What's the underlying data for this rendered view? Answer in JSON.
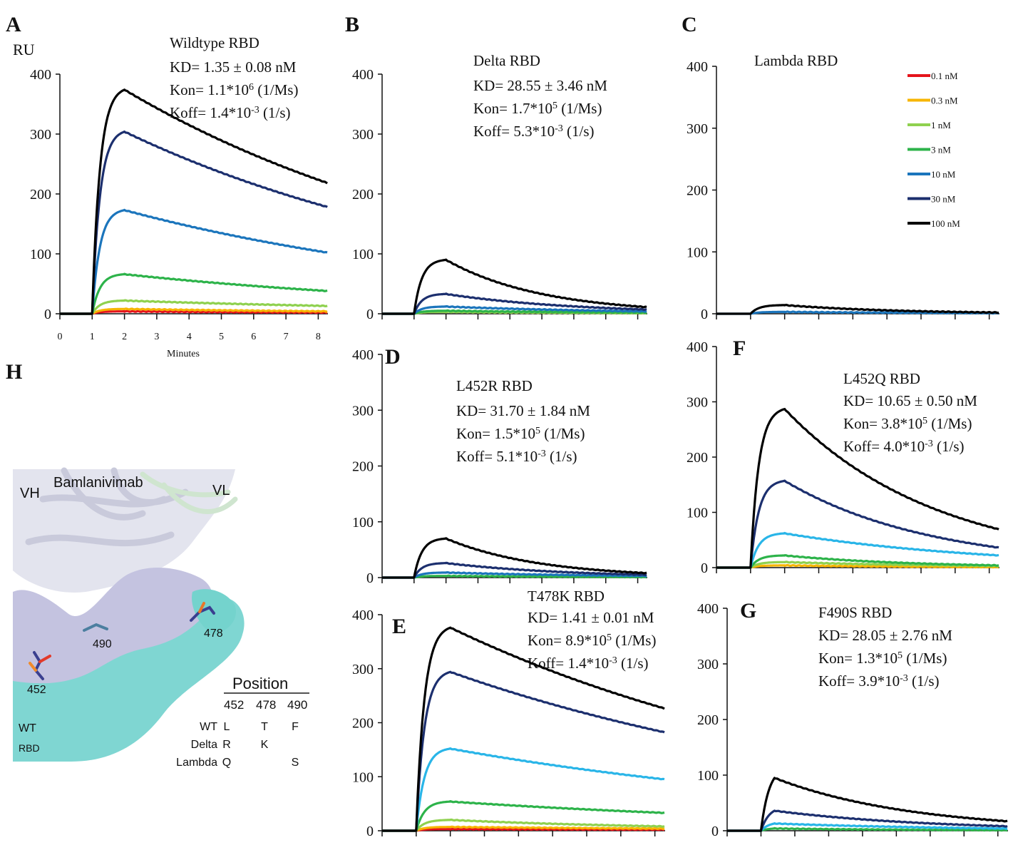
{
  "figure_meta": {
    "panel_H": {
      "letter": "H",
      "antibody_label": "Bamlanivimab",
      "chain_labels": [
        "VH",
        "VL"
      ],
      "residue_labels": [
        "490",
        "478",
        "452"
      ],
      "surface_label": [
        "WT",
        "RBD"
      ],
      "table": {
        "title": "Position",
        "positions": [
          "452",
          "478",
          "490"
        ],
        "rows": [
          {
            "variant": "WT",
            "color": "#33c4cc",
            "residues": [
              "L",
              "T",
              "F"
            ]
          },
          {
            "variant": "Delta",
            "color": "#f07a2a",
            "residues": [
              "R",
              "K",
              ""
            ]
          },
          {
            "variant": "Lambda",
            "color": "#1fbf3a",
            "residues": [
              "Q",
              "",
              "S"
            ]
          }
        ]
      }
    }
  },
  "chart_data": [
    {
      "panel": "A",
      "type": "line",
      "title": "Wildtype RBD",
      "annotation": [
        "KD= 1.35 ± 0.08 nM",
        "Kon= 1.1*10^6 (1/Ms)",
        "Koff= 1.4*10^-3 (1/s)"
      ],
      "ylabel": "RU",
      "xlabel": "Minutes",
      "xlim": [
        0,
        8.3
      ],
      "ylim": [
        0,
        400
      ],
      "yticks": [
        0,
        100,
        200,
        300,
        400
      ],
      "xticks": [
        0,
        1,
        2,
        3,
        4,
        5,
        6,
        7,
        8
      ],
      "show_xtick_labels": true,
      "association_start": 1.0,
      "dissociation_start": 2.0,
      "series": [
        {
          "name": "0.1 nM",
          "color": "#e5141b",
          "peak": 4,
          "end": 2
        },
        {
          "name": "0.3 nM",
          "color": "#f7b500",
          "peak": 8,
          "end": 4
        },
        {
          "name": "1 nM",
          "color": "#8fd14f",
          "peak": 22,
          "end": 13
        },
        {
          "name": "3 nM",
          "color": "#2db34a",
          "peak": 66,
          "end": 38
        },
        {
          "name": "10 nM",
          "color": "#1b75bc",
          "peak": 173,
          "end": 102
        },
        {
          "name": "30 nM",
          "color": "#1c2f6e",
          "peak": 304,
          "end": 178
        },
        {
          "name": "100 nM",
          "color": "#000000",
          "peak": 374,
          "end": 218
        }
      ]
    },
    {
      "panel": "B",
      "type": "line",
      "title": "Delta RBD",
      "annotation": [
        "KD= 28.55 ± 3.46 nM",
        "Kon= 1.7*10^5 (1/Ms)",
        "Koff= 5.3*10^-3 (1/s)"
      ],
      "xlim": [
        0,
        8.3
      ],
      "ylim": [
        0,
        400
      ],
      "yticks": [
        0,
        100,
        200,
        300,
        400
      ],
      "xticks": [
        0,
        1,
        2,
        3,
        4,
        5,
        6,
        7,
        8
      ],
      "show_xtick_labels": false,
      "association_start": 1.0,
      "dissociation_start": 2.0,
      "series": [
        {
          "name": "1 nM",
          "color": "#8fd14f",
          "peak": 3,
          "end": 1
        },
        {
          "name": "3 nM",
          "color": "#2db34a",
          "peak": 5,
          "end": 2
        },
        {
          "name": "10 nM",
          "color": "#1b75bc",
          "peak": 12,
          "end": 4
        },
        {
          "name": "30 nM",
          "color": "#1c2f6e",
          "peak": 33,
          "end": 7
        },
        {
          "name": "100 nM",
          "color": "#000000",
          "peak": 90,
          "end": 11
        }
      ]
    },
    {
      "panel": "C",
      "type": "line",
      "title": "Lambda RBD",
      "annotation": [],
      "xlim": [
        0,
        8.3
      ],
      "ylim": [
        0,
        400
      ],
      "yticks": [
        0,
        100,
        200,
        300,
        400
      ],
      "xticks": [
        0,
        1,
        2,
        3,
        4,
        5,
        6,
        7,
        8
      ],
      "show_xtick_labels": false,
      "association_start": 1.0,
      "dissociation_start": 2.0,
      "legend": [
        "0.1 nM",
        "0.3 nM",
        "1 nM",
        "3 nM",
        "10 nM",
        "30 nM",
        "100 nM"
      ],
      "legend_colors": [
        "#e5141b",
        "#f7b500",
        "#8fd14f",
        "#2db34a",
        "#1b75bc",
        "#1c2f6e",
        "#000000"
      ],
      "series": [
        {
          "name": "10 nM",
          "color": "#1b75bc",
          "peak": 3,
          "end": 1
        },
        {
          "name": "100 nM",
          "color": "#000000",
          "peak": 14,
          "end": 2
        }
      ]
    },
    {
      "panel": "D",
      "type": "line",
      "title": "L452R RBD",
      "annotation": [
        "KD= 31.70 ± 1.84 nM",
        "Kon= 1.5*10^5 (1/Ms)",
        "Koff= 5.1*10^-3 (1/s)"
      ],
      "xlim": [
        0,
        8.3
      ],
      "ylim": [
        0,
        400
      ],
      "yticks": [
        0,
        100,
        200,
        300,
        400
      ],
      "xticks": [
        0,
        1,
        2,
        3,
        4,
        5,
        6,
        7,
        8
      ],
      "show_xtick_labels": false,
      "association_start": 1.0,
      "dissociation_start": 2.0,
      "series": [
        {
          "name": "3 nM",
          "color": "#2db34a",
          "peak": 3,
          "end": 1
        },
        {
          "name": "10 nM",
          "color": "#1b75bc",
          "peak": 9,
          "end": 3
        },
        {
          "name": "30 nM",
          "color": "#1c2f6e",
          "peak": 26,
          "end": 5
        },
        {
          "name": "100 nM",
          "color": "#000000",
          "peak": 70,
          "end": 8
        }
      ]
    },
    {
      "panel": "E",
      "type": "line",
      "title": "T478K RBD",
      "annotation": [
        "KD= 1.41 ± 0.01 nM",
        "Kon= 8.9*10^5 (1/Ms)",
        "Koff= 1.4*10^-3 (1/s)"
      ],
      "xlim": [
        0,
        8.3
      ],
      "ylim": [
        0,
        400
      ],
      "yticks": [
        0,
        100,
        200,
        300,
        400
      ],
      "xticks": [
        0,
        1,
        2,
        3,
        4,
        5,
        6,
        7,
        8
      ],
      "show_xtick_labels": false,
      "association_start": 1.0,
      "dissociation_start": 2.0,
      "series": [
        {
          "name": "0.1 nM",
          "color": "#e5141b",
          "peak": 3,
          "end": 2
        },
        {
          "name": "0.3 nM",
          "color": "#f7b500",
          "peak": 7,
          "end": 4
        },
        {
          "name": "1 nM",
          "color": "#8fd14f",
          "peak": 20,
          "end": 8
        },
        {
          "name": "3 nM",
          "color": "#2db34a",
          "peak": 54,
          "end": 33
        },
        {
          "name": "10 nM",
          "color": "#29b5e8",
          "peak": 152,
          "end": 95
        },
        {
          "name": "30 nM",
          "color": "#1c2f6e",
          "peak": 294,
          "end": 182
        },
        {
          "name": "100 nM",
          "color": "#000000",
          "peak": 376,
          "end": 226
        }
      ]
    },
    {
      "panel": "F",
      "type": "line",
      "title": "L452Q RBD",
      "annotation": [
        "KD= 10.65 ± 0.50 nM",
        "Kon= 3.8*10^5 (1/Ms)",
        "Koff= 4.0*10^-3 (1/s)"
      ],
      "xlim": [
        0,
        8.3
      ],
      "ylim": [
        0,
        400
      ],
      "yticks": [
        0,
        100,
        200,
        300,
        400
      ],
      "xticks": [
        0,
        1,
        2,
        3,
        4,
        5,
        6,
        7,
        8
      ],
      "show_xtick_labels": false,
      "association_start": 1.0,
      "dissociation_start": 2.0,
      "series": [
        {
          "name": "0.3 nM",
          "color": "#f7b500",
          "peak": 4,
          "end": 1
        },
        {
          "name": "1 nM",
          "color": "#8fd14f",
          "peak": 10,
          "end": 3
        },
        {
          "name": "3 nM",
          "color": "#2db34a",
          "peak": 22,
          "end": 4
        },
        {
          "name": "10 nM",
          "color": "#29b5e8",
          "peak": 62,
          "end": 22
        },
        {
          "name": "30 nM",
          "color": "#1c2f6e",
          "peak": 157,
          "end": 36
        },
        {
          "name": "100 nM",
          "color": "#000000",
          "peak": 287,
          "end": 69
        }
      ]
    },
    {
      "panel": "G",
      "type": "line",
      "title": "F490S RBD",
      "annotation": [
        "KD= 28.05 ± 2.76 nM",
        "Kon= 1.3*10^5 (1/Ms)",
        "Koff= 3.9*10^-3 (1/s)"
      ],
      "xlim": [
        0,
        8.3
      ],
      "ylim": [
        0,
        400
      ],
      "yticks": [
        0,
        100,
        200,
        300,
        400
      ],
      "xticks": [
        0,
        1,
        2,
        3,
        4,
        5,
        6,
        7,
        8
      ],
      "show_xtick_labels": false,
      "association_start": 1.0,
      "dissociation_start": 1.4,
      "series": [
        {
          "name": "3 nM",
          "color": "#2db34a",
          "peak": 4,
          "end": 1
        },
        {
          "name": "10 nM",
          "color": "#29b5e8",
          "peak": 13,
          "end": 4
        },
        {
          "name": "30 nM",
          "color": "#1c2f6e",
          "peak": 36,
          "end": 8
        },
        {
          "name": "100 nM",
          "color": "#000000",
          "peak": 95,
          "end": 17
        }
      ]
    }
  ]
}
